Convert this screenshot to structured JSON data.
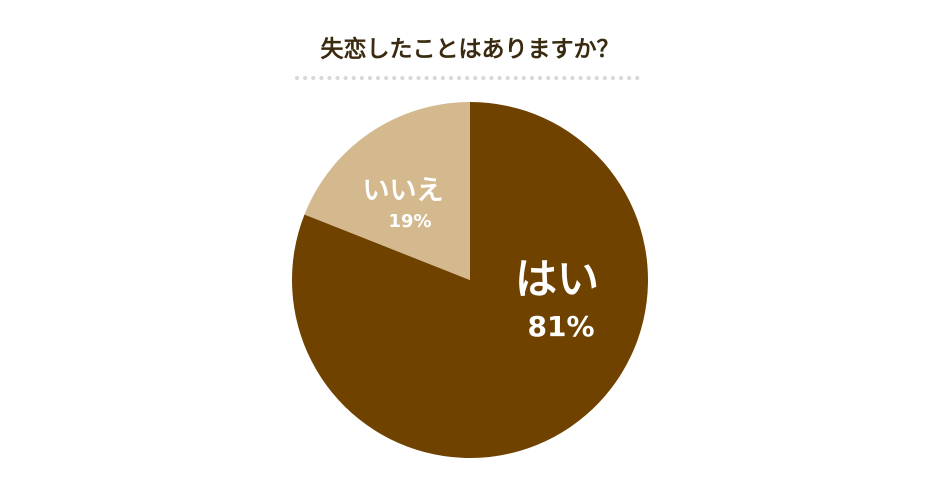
{
  "chart_data": {
    "type": "pie",
    "title": "失恋したことはありますか？",
    "categories": [
      "はい",
      "いいえ"
    ],
    "values": [
      81,
      19
    ],
    "value_labels": [
      "81%",
      "19%"
    ],
    "colors": [
      "#6f4200",
      "#d4b88e"
    ]
  }
}
